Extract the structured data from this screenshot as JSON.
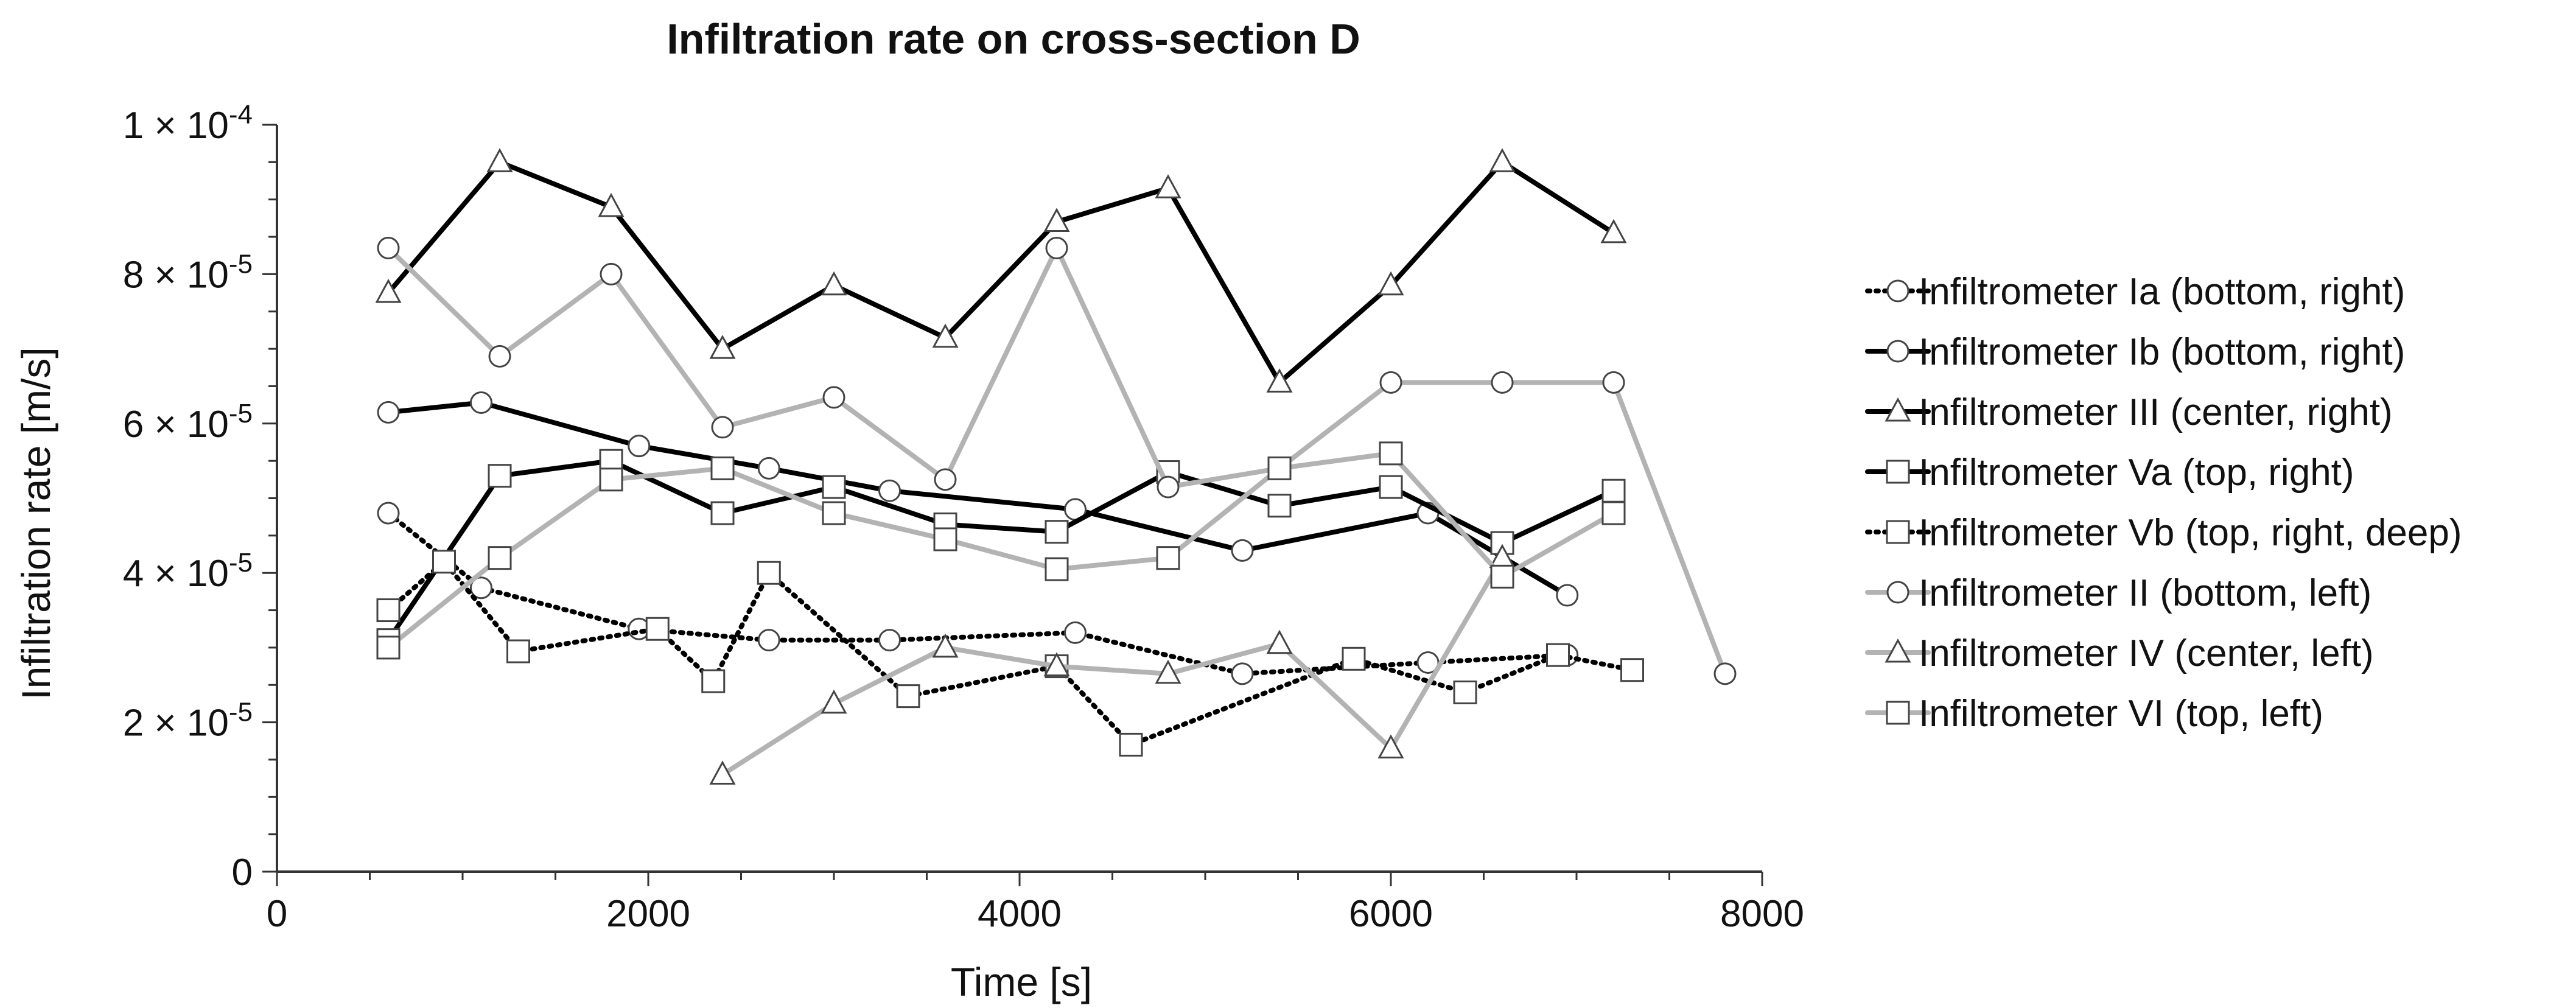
{
  "chart_data": {
    "type": "line",
    "title": "Infiltration rate on cross-section D",
    "xlabel": "Time [s]",
    "ylabel": "Infiltration rate [m/s]",
    "xlim": [
      0,
      8000
    ],
    "ylim": [
      0,
      0.0001
    ],
    "x_ticks": [
      0,
      2000,
      4000,
      6000,
      8000
    ],
    "x_tick_labels": [
      "0",
      "2000",
      "4000",
      "6000",
      "8000"
    ],
    "y_ticks": [
      0,
      2e-05,
      4e-05,
      6e-05,
      8e-05,
      0.0001
    ],
    "y_tick_labels": [
      {
        "mantissa": "0",
        "exp": ""
      },
      {
        "mantissa": "2 × 10",
        "exp": "-5"
      },
      {
        "mantissa": "4 × 10",
        "exp": "-5"
      },
      {
        "mantissa": "6 × 10",
        "exp": "-5"
      },
      {
        "mantissa": "8 × 10",
        "exp": "-5"
      },
      {
        "mantissa": "1 × 10",
        "exp": "-4"
      }
    ],
    "grid": false,
    "legend_position": "right",
    "series": [
      {
        "name": "Infiltrometer Ia (bottom, right)",
        "color": "#000000",
        "dash": "dotted",
        "marker": "circle",
        "x": [
          600,
          1100,
          1950,
          2650,
          3300,
          4300,
          5200,
          6200,
          6950
        ],
        "y": [
          4.8e-05,
          3.8e-05,
          3.25e-05,
          3.1e-05,
          3.1e-05,
          3.2e-05,
          2.65e-05,
          2.8e-05,
          2.9e-05
        ]
      },
      {
        "name": "Infiltrometer Ib (bottom, right)",
        "color": "#000000",
        "dash": "solid",
        "marker": "circle",
        "x": [
          600,
          1100,
          1950,
          2650,
          3300,
          4300,
          5200,
          6200,
          6950
        ],
        "y": [
          6.15e-05,
          6.28e-05,
          5.7e-05,
          5.4e-05,
          5.1e-05,
          4.85e-05,
          4.3e-05,
          4.8e-05,
          3.7e-05
        ]
      },
      {
        "name": "Infiltrometer III (center, right)",
        "color": "#000000",
        "dash": "solid",
        "marker": "triangle",
        "x": [
          600,
          1200,
          1800,
          2400,
          3000,
          3600,
          4200,
          4800,
          5400,
          6000,
          6600,
          7200
        ],
        "y": [
          7.75e-05,
          9.5e-05,
          8.9e-05,
          7e-05,
          7.85e-05,
          7.15e-05,
          8.7e-05,
          9.15e-05,
          6.55e-05,
          7.85e-05,
          9.5e-05,
          8.55e-05
        ]
      },
      {
        "name": "Infiltrometer Va (top, right)",
        "color": "#000000",
        "dash": "solid",
        "marker": "square",
        "x": [
          600,
          1200,
          1800,
          2400,
          3000,
          3600,
          4200,
          4800,
          5400,
          6000,
          6600,
          7200
        ],
        "y": [
          3.1e-05,
          5.3e-05,
          5.5e-05,
          4.8e-05,
          5.15e-05,
          4.65e-05,
          4.55e-05,
          5.35e-05,
          4.9e-05,
          5.15e-05,
          4.4e-05,
          5.1e-05
        ]
      },
      {
        "name": "Infiltrometer Vb (top, right, deep)",
        "color": "#000000",
        "dash": "dotted",
        "marker": "square",
        "x": [
          600,
          900,
          1300,
          2050,
          2350,
          2650,
          3400,
          4200,
          4600,
          5800,
          6400,
          6900,
          7300
        ],
        "y": [
          3.5e-05,
          4.15e-05,
          2.95e-05,
          3.25e-05,
          2.55e-05,
          4e-05,
          2.35e-05,
          2.75e-05,
          1.7e-05,
          2.85e-05,
          2.4e-05,
          2.9e-05,
          2.7e-05
        ]
      },
      {
        "name": "Infiltrometer II (bottom, left)",
        "color": "#b3b3b3",
        "dash": "solid",
        "marker": "circle",
        "x": [
          600,
          1200,
          1800,
          2400,
          3000,
          3600,
          4200,
          4800,
          5400,
          6000,
          6600,
          7200,
          7800
        ],
        "y": [
          8.35e-05,
          6.9e-05,
          8e-05,
          5.95e-05,
          6.35e-05,
          5.25e-05,
          8.35e-05,
          5.15e-05,
          5.4e-05,
          6.55e-05,
          6.55e-05,
          6.55e-05,
          2.65e-05
        ]
      },
      {
        "name": "Infiltrometer IV (center, left)",
        "color": "#b3b3b3",
        "dash": "solid",
        "marker": "triangle",
        "x": [
          2400,
          3000,
          3600,
          4200,
          4800,
          5400,
          6000,
          6600
        ],
        "y": [
          1.3e-05,
          2.25e-05,
          3e-05,
          2.75e-05,
          2.65e-05,
          3.05e-05,
          1.65e-05,
          4.2e-05
        ]
      },
      {
        "name": "Infiltrometer VI (top, left)",
        "color": "#b3b3b3",
        "dash": "solid",
        "marker": "square",
        "x": [
          600,
          1200,
          1800,
          2400,
          3000,
          3600,
          4200,
          4800,
          5400,
          6000,
          6600,
          7200
        ],
        "y": [
          3e-05,
          4.2e-05,
          5.25e-05,
          5.4e-05,
          4.8e-05,
          4.45e-05,
          4.05e-05,
          4.2e-05,
          5.4e-05,
          5.6e-05,
          3.95e-05,
          4.8e-05
        ]
      }
    ]
  }
}
